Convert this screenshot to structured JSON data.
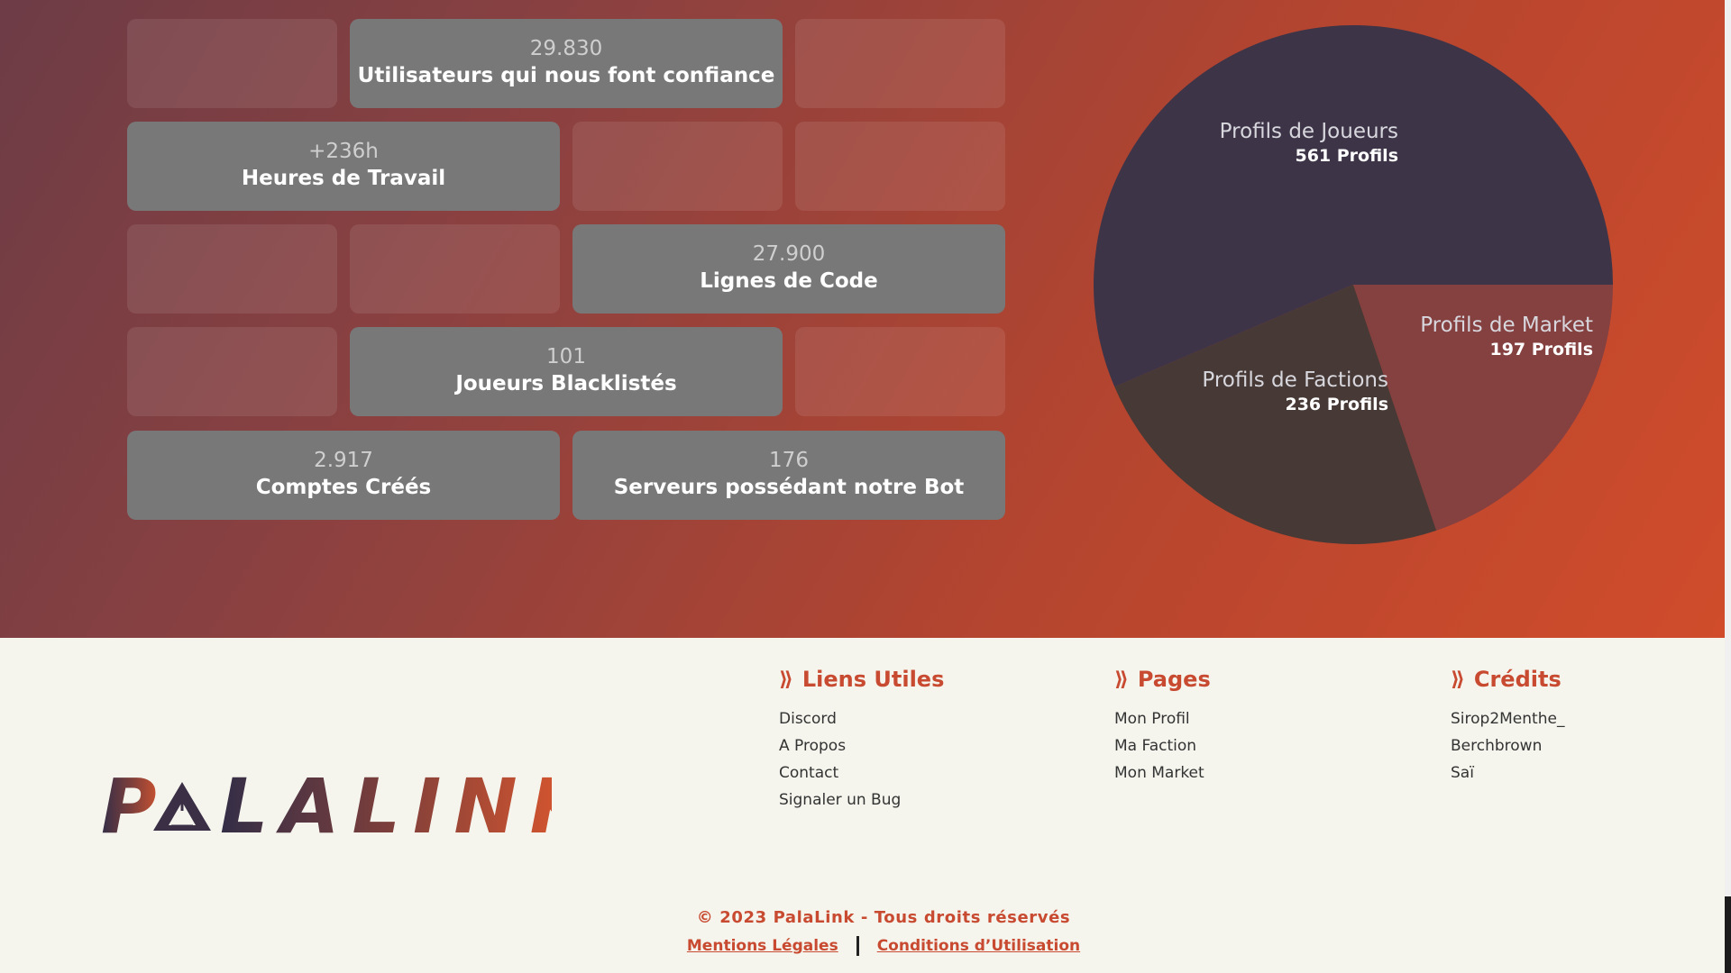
{
  "stats": [
    {
      "value": "29.830",
      "label": "Utilisateurs qui nous font confiance"
    },
    {
      "value": "+236h",
      "label": "Heures de Travail"
    },
    {
      "value": "27.900",
      "label": "Lignes de Code"
    },
    {
      "value": "101",
      "label": "Joueurs Blacklistés"
    },
    {
      "value": "2.917",
      "label": "Comptes Créés"
    },
    {
      "value": "176",
      "label": "Serveurs possédant notre Bot"
    }
  ],
  "chart_data": {
    "type": "pie",
    "slices": [
      {
        "name": "Profils de Joueurs",
        "value": 561,
        "count_label": "561 Profils",
        "color": "#3d3448"
      },
      {
        "name": "Profils de Market",
        "value": 197,
        "count_label": "197 Profils",
        "color": "#854040"
      },
      {
        "name": "Profils de Factions",
        "value": 236,
        "count_label": "236 Profils",
        "color": "#473936"
      }
    ]
  },
  "logo": {
    "text": "PALALINK"
  },
  "footer": {
    "columns": [
      {
        "title": "Liens Utiles",
        "links": [
          "Discord",
          "A Propos",
          "Contact",
          "Signaler un Bug"
        ]
      },
      {
        "title": "Pages",
        "links": [
          "Mon Profil",
          "Ma Faction",
          "Mon Market"
        ]
      },
      {
        "title": "Crédits",
        "links": [
          "Sirop2Menthe_",
          "Berchbrown",
          "Saï"
        ]
      }
    ],
    "copyright": "© 2023 PalaLink - Tous droits réservés",
    "legal_links": [
      "Mentions Légales",
      "Conditions d’Utilisation"
    ]
  },
  "colors": {
    "accent": "#c84a30",
    "tile": "#787878"
  }
}
